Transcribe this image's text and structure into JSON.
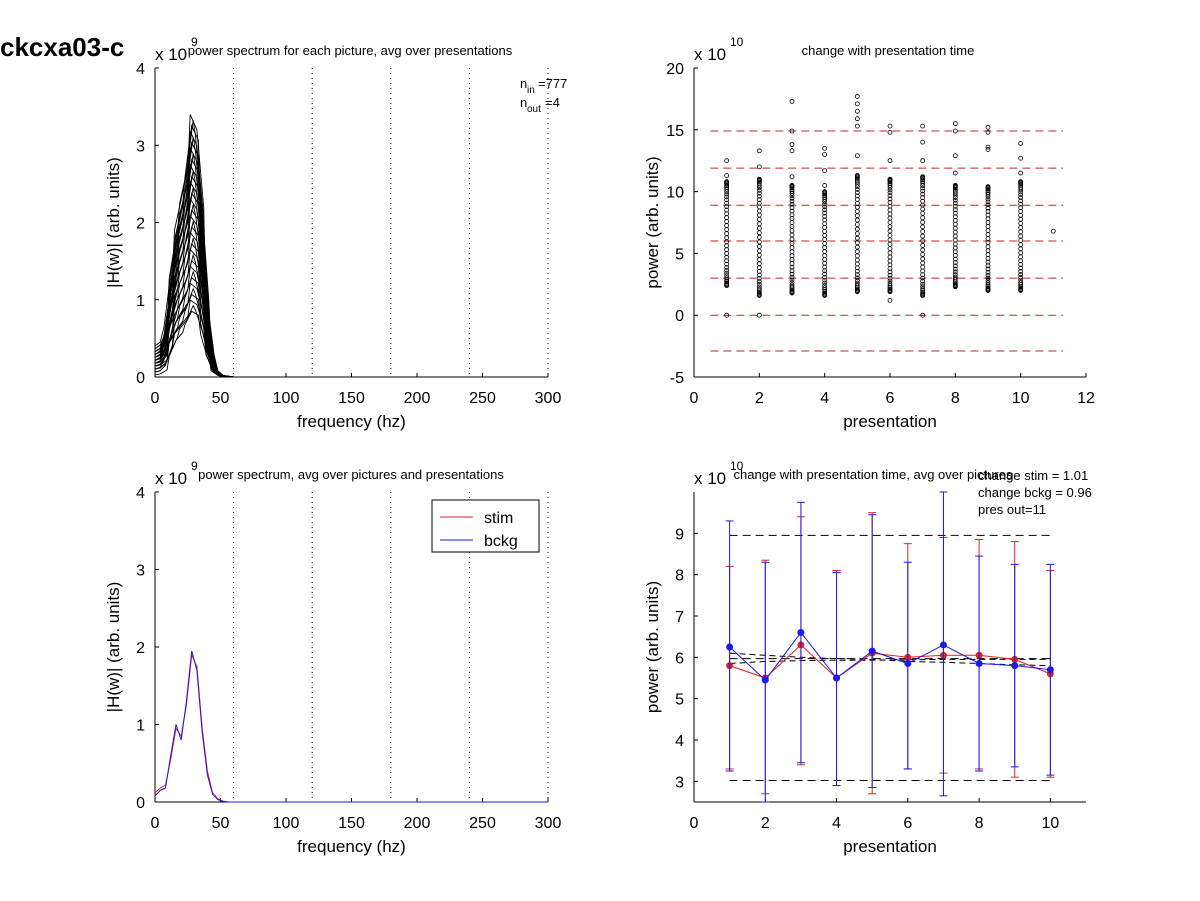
{
  "figure": {
    "title": "ckcxa03-c"
  },
  "colors": {
    "stim": "#dd2222",
    "bckg": "#1a1aee",
    "ref": "#cc2222",
    "dash": "#000000"
  },
  "chart_data": [
    {
      "id": "p1",
      "type": "line",
      "title": "power spectrum for each picture, avg over presentations",
      "xlabel": "frequency (hz)",
      "ylabel": "|H(w)| (arb. units)",
      "exponent": "9",
      "xlim": [
        0,
        300
      ],
      "ylim": [
        0,
        4
      ],
      "xticks": [
        0,
        50,
        100,
        150,
        200,
        250,
        300
      ],
      "yticks": [
        0,
        1,
        2,
        3,
        4
      ],
      "vlines": [
        60,
        120,
        180,
        240,
        300
      ],
      "annotation": {
        "n_in": "777",
        "n_out": "4"
      },
      "x": [
        0,
        4,
        8,
        12,
        16,
        20,
        24,
        28,
        32,
        36,
        40,
        44,
        48,
        52,
        56,
        60,
        300
      ],
      "envelope": {
        "upper": [
          0.35,
          0.4,
          0.6,
          1.3,
          1.9,
          2.3,
          2.7,
          3.4,
          3.2,
          2.2,
          1.0,
          0.3,
          0.08,
          0.02,
          0.01,
          0.0,
          0.0
        ]
      }
    },
    {
      "id": "p2",
      "type": "scatter",
      "title": "change with presentation time",
      "xlabel": "presentation",
      "ylabel": "power (arb. units)",
      "exponent": "10",
      "xlim": [
        0,
        12
      ],
      "ylim": [
        -5,
        20
      ],
      "xticks": [
        0,
        2,
        4,
        6,
        8,
        10,
        12
      ],
      "yticks": [
        -5,
        0,
        5,
        10,
        15,
        20
      ],
      "hlines": [
        14.9,
        11.9,
        8.9,
        6.0,
        3.0,
        0.0,
        -2.9
      ],
      "outliers": [
        {
          "x": 1,
          "y": 12.5
        },
        {
          "x": 1,
          "y": 11.3
        },
        {
          "x": 1,
          "y": 0.0
        },
        {
          "x": 2,
          "y": 13.3
        },
        {
          "x": 2,
          "y": 12.0
        },
        {
          "x": 2,
          "y": 0.0
        },
        {
          "x": 3,
          "y": 17.3
        },
        {
          "x": 3,
          "y": 14.9
        },
        {
          "x": 3,
          "y": 13.8
        },
        {
          "x": 3,
          "y": 13.3
        },
        {
          "x": 3,
          "y": 11.2
        },
        {
          "x": 4,
          "y": 13.5
        },
        {
          "x": 4,
          "y": 13.0
        },
        {
          "x": 4,
          "y": 11.7
        },
        {
          "x": 4,
          "y": 10.5
        },
        {
          "x": 5,
          "y": 17.7
        },
        {
          "x": 5,
          "y": 17.1
        },
        {
          "x": 5,
          "y": 16.5
        },
        {
          "x": 5,
          "y": 15.9
        },
        {
          "x": 5,
          "y": 15.3
        },
        {
          "x": 5,
          "y": 12.9
        },
        {
          "x": 6,
          "y": 15.3
        },
        {
          "x": 6,
          "y": 14.8
        },
        {
          "x": 6,
          "y": 12.5
        },
        {
          "x": 6,
          "y": 1.2
        },
        {
          "x": 7,
          "y": 15.3
        },
        {
          "x": 7,
          "y": 14.0
        },
        {
          "x": 7,
          "y": 12.5
        },
        {
          "x": 7,
          "y": 0.0
        },
        {
          "x": 8,
          "y": 15.5
        },
        {
          "x": 8,
          "y": 14.9
        },
        {
          "x": 8,
          "y": 12.9
        },
        {
          "x": 8,
          "y": 11.5
        },
        {
          "x": 9,
          "y": 15.2
        },
        {
          "x": 9,
          "y": 14.8
        },
        {
          "x": 9,
          "y": 13.6
        },
        {
          "x": 9,
          "y": 13.4
        },
        {
          "x": 10,
          "y": 13.9
        },
        {
          "x": 10,
          "y": 12.7
        },
        {
          "x": 10,
          "y": 11.5
        },
        {
          "x": 11,
          "y": 6.8
        }
      ],
      "columns": [
        {
          "x": 1,
          "min": 2.4,
          "max": 10.8
        },
        {
          "x": 2,
          "min": 1.6,
          "max": 11.0
        },
        {
          "x": 3,
          "min": 1.8,
          "max": 10.5
        },
        {
          "x": 4,
          "min": 1.6,
          "max": 10.0
        },
        {
          "x": 5,
          "min": 1.9,
          "max": 11.3
        },
        {
          "x": 6,
          "min": 1.9,
          "max": 11.0
        },
        {
          "x": 7,
          "min": 1.6,
          "max": 11.2
        },
        {
          "x": 8,
          "min": 2.3,
          "max": 10.5
        },
        {
          "x": 9,
          "min": 2.0,
          "max": 10.4
        },
        {
          "x": 10,
          "min": 2.0,
          "max": 10.8
        }
      ]
    },
    {
      "id": "p3",
      "type": "line",
      "title": "power spectrum, avg over pictures and presentations",
      "xlabel": "frequency (hz)",
      "ylabel": "|H(w)| (arb. units)",
      "exponent": "9",
      "xlim": [
        0,
        300
      ],
      "ylim": [
        0,
        4
      ],
      "xticks": [
        0,
        50,
        100,
        150,
        200,
        250,
        300
      ],
      "yticks": [
        0,
        1,
        2,
        3,
        4
      ],
      "vlines": [
        60,
        120,
        180,
        240,
        300
      ],
      "legend": {
        "position": "top-right"
      },
      "x": [
        0,
        4,
        8,
        12,
        16,
        20,
        24,
        28,
        32,
        36,
        40,
        44,
        48,
        52,
        56,
        60,
        300
      ],
      "series": [
        {
          "name": "stim",
          "values": [
            0.12,
            0.18,
            0.22,
            0.55,
            0.95,
            0.85,
            1.25,
            1.9,
            1.75,
            0.95,
            0.4,
            0.12,
            0.04,
            0.01,
            0.0,
            0.0,
            0.0
          ]
        },
        {
          "name": "bckg",
          "values": [
            0.08,
            0.15,
            0.18,
            0.6,
            1.0,
            0.8,
            1.3,
            1.95,
            1.7,
            0.9,
            0.35,
            0.1,
            0.03,
            0.01,
            0.0,
            0.0,
            0.0
          ]
        }
      ]
    },
    {
      "id": "p4",
      "type": "line",
      "title": "change with presentation time, avg over pictures",
      "xlabel": "presentation",
      "ylabel": "power (arb. units)",
      "exponent": "10",
      "xlim": [
        0,
        11
      ],
      "ylim": [
        2.5,
        10
      ],
      "xticks": [
        0,
        2,
        4,
        6,
        8,
        10
      ],
      "yticks": [
        3,
        4,
        5,
        6,
        7,
        8,
        9
      ],
      "hlines": [
        8.95,
        5.97,
        3.02
      ],
      "annotations": [
        "change stim = 1.01",
        "change bckg = 0.96",
        "pres out=11"
      ],
      "x": [
        1,
        2,
        3,
        4,
        5,
        6,
        7,
        8,
        9,
        10
      ],
      "series": [
        {
          "name": "stim",
          "values": [
            5.8,
            5.5,
            6.3,
            5.5,
            6.1,
            6.0,
            6.05,
            6.05,
            5.95,
            5.6
          ],
          "err_low": [
            3.3,
            2.7,
            3.4,
            2.9,
            2.7,
            3.3,
            3.2,
            3.3,
            3.1,
            3.1
          ],
          "err_high": [
            8.2,
            8.35,
            9.4,
            8.1,
            9.5,
            8.75,
            8.9,
            8.85,
            8.8,
            8.1
          ]
        },
        {
          "name": "bckg",
          "values": [
            6.25,
            5.45,
            6.6,
            5.5,
            6.15,
            5.85,
            6.3,
            5.85,
            5.8,
            5.7
          ],
          "err_low": [
            3.25,
            2.5,
            3.45,
            2.9,
            2.85,
            3.3,
            2.65,
            3.25,
            3.35,
            3.15
          ],
          "err_high": [
            9.3,
            8.3,
            9.75,
            8.05,
            9.45,
            8.3,
            10.0,
            8.45,
            8.25,
            8.25
          ]
        }
      ],
      "trends": [
        {
          "name": "stim",
          "values": [
            5.85,
            5.9,
            5.92,
            5.93,
            5.93,
            5.94,
            5.95,
            5.95,
            5.95,
            5.95
          ]
        },
        {
          "name": "bckg",
          "values": [
            6.1,
            6.05,
            6.0,
            5.97,
            5.95,
            5.9,
            5.88,
            5.85,
            5.82,
            5.8
          ]
        }
      ]
    }
  ]
}
